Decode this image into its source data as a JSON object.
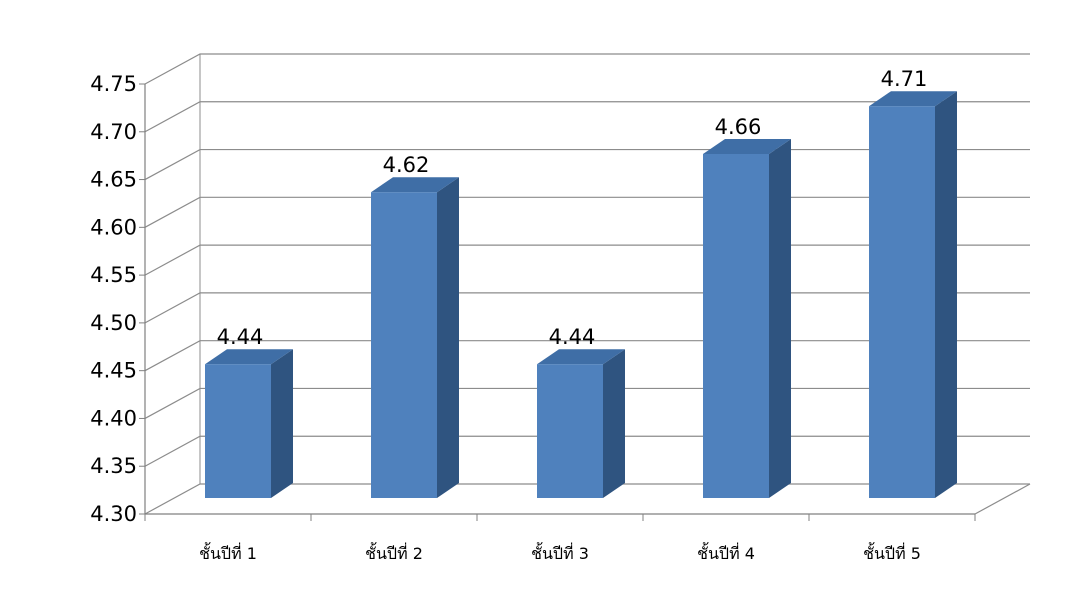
{
  "chart_data": {
    "type": "bar",
    "title": "",
    "xlabel": "",
    "ylabel": "",
    "categories": [
      "ชั้นปีที่  1",
      "ชั้นปีที่  2",
      "ชั้นปีที่  3",
      "ชั้นปีที่  4",
      "ชั้นปีที่  5"
    ],
    "values": [
      4.44,
      4.62,
      4.44,
      4.66,
      4.71
    ],
    "data_labels": [
      "4.44",
      "4.62",
      "4.44",
      "4.66",
      "4.71"
    ],
    "ylim": [
      4.3,
      4.75
    ],
    "y_ticks": [
      "4.30",
      "4.35",
      "4.40",
      "4.45",
      "4.50",
      "4.55",
      "4.60",
      "4.65",
      "4.70",
      "4.75"
    ],
    "grid": true,
    "three_d": true,
    "legend": "none",
    "colors": {
      "bar_front": "#4f81bd",
      "bar_side": "#2f5480",
      "bar_top": "#3f6ea6",
      "gridline": "#8c8c8c",
      "axis": "#808080",
      "text": "#000000"
    }
  }
}
